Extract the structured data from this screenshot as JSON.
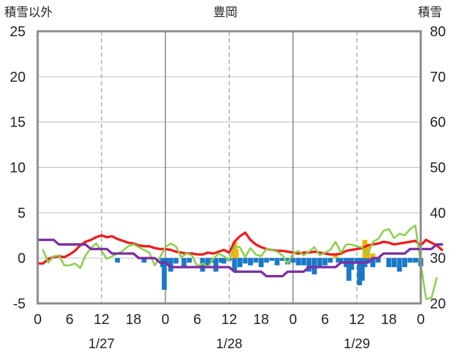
{
  "chart_data": {
    "type": "bar+line",
    "title": "豊岡",
    "left_axis_label": "積雪以外",
    "right_axis_label": "積雪",
    "left_ylim": [
      -5,
      25
    ],
    "left_yticks": [
      -5,
      0,
      5,
      10,
      15,
      20,
      25
    ],
    "right_ylim": [
      20,
      80
    ],
    "right_yticks": [
      20,
      30,
      40,
      50,
      60,
      70,
      80
    ],
    "x_range_hours": [
      0,
      72
    ],
    "x_tick_labels": [
      "0",
      "6",
      "12",
      "18",
      "0",
      "6",
      "12",
      "18",
      "0",
      "6",
      "12",
      "18",
      "0"
    ],
    "date_labels": [
      "1/27",
      "1/28",
      "1/29"
    ],
    "grid": "dashed vertical lines at 12:00, solid vertical lines at 0:00",
    "colors": {
      "red_series": "#ee1c1c",
      "green_series": "#8ccf4d",
      "purple_series": "#7b2fa3",
      "blue_bars": "#1a78c8",
      "orange_bars": "#f5b400",
      "frame": "#8a8a8a"
    },
    "series": [
      {
        "color_key": "red_series",
        "axis": "left",
        "values": [
          -0.6,
          -0.6,
          -0.1,
          0.1,
          0.2,
          0.1,
          0.4,
          0.8,
          1.4,
          1.8,
          2.0,
          2.3,
          2.5,
          2.3,
          2.4,
          2.1,
          1.9,
          1.7,
          1.6,
          1.4,
          1.3,
          1.3,
          1.1,
          1.0,
          1.0,
          0.9,
          0.7,
          0.6,
          0.5,
          0.5,
          0.4,
          0.4,
          0.6,
          0.5,
          0.7,
          0.9,
          0.6,
          1.8,
          2.4,
          2.8,
          2.0,
          1.5,
          1.2,
          1.0,
          0.9,
          0.8,
          0.8,
          0.7,
          0.6,
          0.5,
          0.6,
          0.6,
          0.7,
          0.6,
          0.5,
          0.4,
          0.4,
          0.5,
          0.8,
          0.9,
          1.0,
          1.1,
          1.4,
          1.5,
          1.6,
          1.8,
          1.7,
          1.5,
          1.6,
          1.7,
          1.8,
          1.9,
          1.4,
          2.0,
          1.7,
          1.4,
          0.9
        ]
      },
      {
        "color_key": "green_series",
        "axis": "left",
        "values": [
          null,
          0.9,
          -0.5,
          0.2,
          0.3,
          -0.8,
          -0.8,
          -0.6,
          -1.1,
          0.3,
          1.1,
          1.6,
          0.8,
          -0.1,
          0.2,
          0.5,
          0.8,
          1.3,
          1.5,
          1.2,
          0.9,
          0.6,
          -0.8,
          0.1,
          1.2,
          1.6,
          1.3,
          0.1,
          0.5,
          0.3,
          -0.9,
          -0.6,
          -1.0,
          -0.1,
          0.5,
          0.2,
          -0.2,
          1.3,
          1.2,
          0.1,
          1.1,
          0.4,
          0.2,
          1.0,
          0.9,
          0.7,
          0.3,
          -0.6,
          0.5,
          0.8,
          0.3,
          0.7,
          1.2,
          0.3,
          0.6,
          0.9,
          1.8,
          0.6,
          1.5,
          1.5,
          1.3,
          1.2,
          0.3,
          1.8,
          2.1,
          3.0,
          3.2,
          2.2,
          2.7,
          2.5,
          3.2,
          3.6,
          -0.6,
          -4.5,
          -4.4,
          -2.2
        ]
      },
      {
        "color_key": "purple_series",
        "axis": "right",
        "values": [
          34,
          34,
          34,
          34,
          33,
          33,
          33,
          33,
          33,
          33,
          32,
          32,
          32,
          32,
          31,
          31,
          31,
          31,
          31,
          30,
          30,
          30,
          30,
          29,
          29,
          28,
          28,
          28,
          28,
          28,
          28,
          28,
          28,
          28,
          28,
          28,
          28,
          27,
          27,
          27,
          27,
          27,
          27,
          26,
          26,
          26,
          26,
          27,
          27,
          27,
          27,
          28,
          28,
          28,
          28,
          28,
          28,
          29,
          29,
          29,
          29,
          29,
          29,
          30,
          30,
          31,
          31,
          31,
          31,
          31,
          32,
          32,
          32,
          32,
          32,
          33,
          33
        ]
      }
    ],
    "bars": [
      {
        "color_key": "blue_bars",
        "axis": "left",
        "hours": [
          15.0,
          20.0,
          23.5,
          23.8,
          24.2,
          25.0,
          26.0,
          27.5,
          28.5,
          31.0,
          32.0,
          33.0,
          33.5,
          34.5,
          35.0,
          36.0,
          37.0,
          38.0,
          39.0,
          40.0,
          41.0,
          42.0,
          43.0,
          44.0,
          45.0,
          46.0,
          47.0,
          48.0,
          49.0,
          50.0,
          51.0,
          52.0,
          53.0,
          54.0,
          55.0,
          56.5,
          57.0,
          58.0,
          58.5,
          59.0,
          60.0,
          60.5,
          61.0,
          61.5,
          62.0,
          63.0,
          64.0,
          66.0,
          67.0,
          68.0,
          69.0,
          70.0,
          71.0,
          72.0
        ],
        "values": [
          -0.5,
          -0.5,
          -1.0,
          -3.5,
          -0.6,
          -1.5,
          -0.6,
          -0.9,
          -0.5,
          -1.5,
          -0.8,
          -0.5,
          -1.5,
          -0.5,
          -0.6,
          -0.3,
          -1.5,
          -1.0,
          -0.6,
          -0.8,
          -0.5,
          -1.0,
          -0.5,
          -0.3,
          -0.8,
          -0.3,
          -0.7,
          -0.5,
          -0.8,
          -0.8,
          -1.5,
          -1.8,
          -1.0,
          -0.8,
          -0.5,
          -0.5,
          -0.5,
          -1.0,
          -2.5,
          -1.3,
          -0.5,
          -3.0,
          -2.5,
          -1.0,
          -0.6,
          -1.0,
          -0.5,
          -1.0,
          -1.0,
          -1.5,
          -1.0,
          -0.5,
          -0.5,
          -0.9
        ]
      },
      {
        "color_key": "orange_bars",
        "axis": "left",
        "hours": [
          37.0,
          37.3,
          56.0,
          61.5,
          62.0,
          63.0
        ],
        "values": [
          1.8,
          1.0,
          0.5,
          2.0,
          1.4,
          0.5
        ]
      }
    ]
  }
}
